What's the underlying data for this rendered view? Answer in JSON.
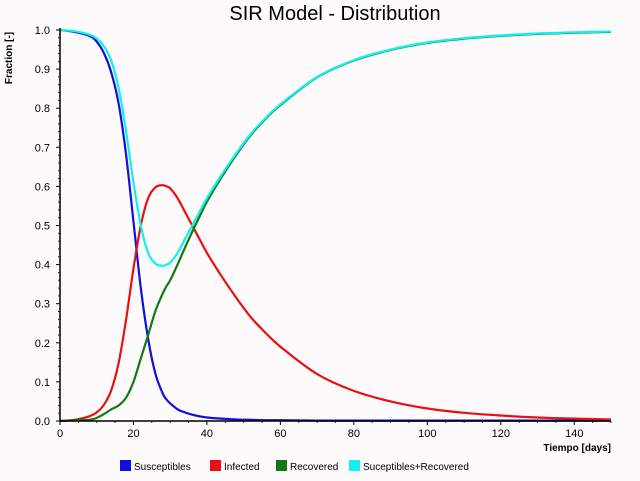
{
  "chart_data": {
    "type": "line",
    "title": "SIR Model - Distribution",
    "xlabel": "Tiempo [days]",
    "ylabel": "Fraction [-]",
    "xlim": [
      0,
      150
    ],
    "ylim": [
      0,
      1.0
    ],
    "xticks": [
      0,
      20,
      40,
      60,
      80,
      100,
      120,
      140
    ],
    "yticks": [
      0.0,
      0.1,
      0.2,
      0.3,
      0.4,
      0.5,
      0.6,
      0.7,
      0.8,
      0.9,
      1.0
    ],
    "ytick_labels": [
      "0.0",
      "0.1",
      "0.2",
      "0.3",
      "0.4",
      "0.5",
      "0.6",
      "0.7",
      "0.8",
      "0.9",
      "1.0"
    ],
    "grid": false,
    "legend_position": "bottom",
    "x": [
      0,
      4,
      8,
      10,
      12,
      14,
      16,
      18,
      20,
      22,
      24,
      26,
      28,
      29,
      30,
      32,
      34,
      36,
      38,
      40,
      44,
      48,
      52,
      56,
      60,
      70,
      80,
      90,
      100,
      110,
      120,
      130,
      140,
      150
    ],
    "series": [
      {
        "name": "Susceptibles",
        "color": "#1010d8",
        "values": [
          1.0,
          0.995,
          0.985,
          0.97,
          0.94,
          0.89,
          0.81,
          0.68,
          0.51,
          0.34,
          0.21,
          0.12,
          0.07,
          0.055,
          0.045,
          0.03,
          0.022,
          0.016,
          0.012,
          0.009,
          0.006,
          0.004,
          0.003,
          0.002,
          0.002,
          0.001,
          0.001,
          0.001,
          0.001,
          0.001,
          0.001,
          0.001,
          0.001,
          0.001
        ]
      },
      {
        "name": "Infected",
        "color": "#e81010",
        "values": [
          0.0,
          0.003,
          0.012,
          0.022,
          0.042,
          0.08,
          0.15,
          0.26,
          0.39,
          0.5,
          0.57,
          0.598,
          0.603,
          0.6,
          0.595,
          0.57,
          0.535,
          0.5,
          0.465,
          0.43,
          0.37,
          0.315,
          0.265,
          0.225,
          0.19,
          0.12,
          0.077,
          0.05,
          0.032,
          0.021,
          0.014,
          0.009,
          0.006,
          0.004
        ]
      },
      {
        "name": "Recovered",
        "color": "#107a10",
        "values": [
          0.0,
          0.002,
          0.003,
          0.008,
          0.018,
          0.03,
          0.04,
          0.06,
          0.1,
          0.16,
          0.22,
          0.282,
          0.327,
          0.345,
          0.36,
          0.4,
          0.443,
          0.484,
          0.523,
          0.561,
          0.624,
          0.681,
          0.732,
          0.773,
          0.808,
          0.879,
          0.922,
          0.949,
          0.967,
          0.978,
          0.985,
          0.99,
          0.993,
          0.995
        ]
      },
      {
        "name": "Suceptibles+Recovered",
        "color": "#10f0f0",
        "values": [
          1.0,
          0.997,
          0.988,
          0.978,
          0.958,
          0.92,
          0.85,
          0.74,
          0.61,
          0.5,
          0.43,
          0.402,
          0.397,
          0.4,
          0.405,
          0.43,
          0.465,
          0.5,
          0.535,
          0.57,
          0.63,
          0.685,
          0.735,
          0.775,
          0.81,
          0.88,
          0.923,
          0.95,
          0.968,
          0.979,
          0.986,
          0.991,
          0.994,
          0.996
        ]
      }
    ]
  }
}
